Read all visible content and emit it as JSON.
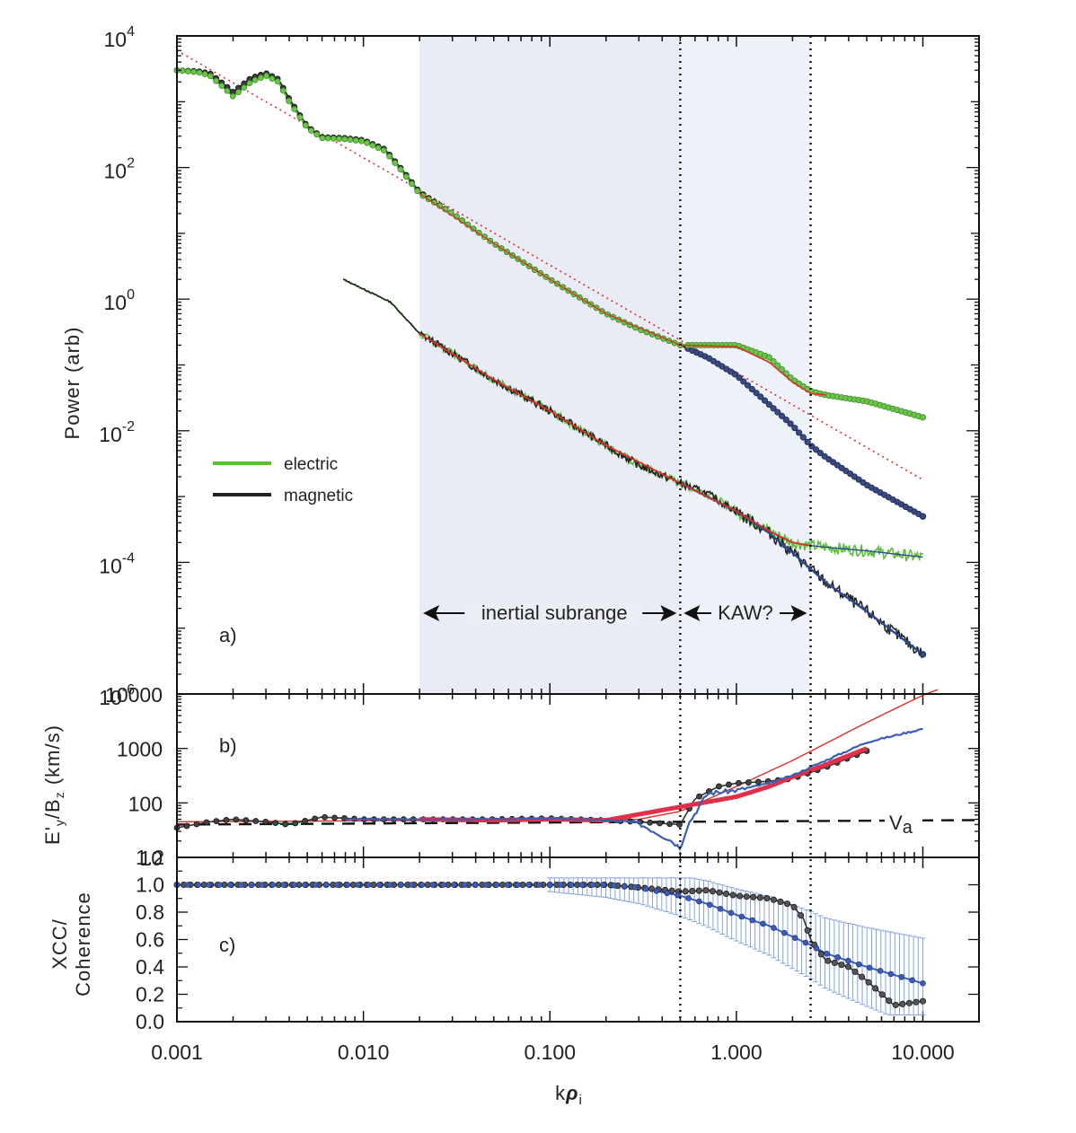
{
  "chart_data": [
    {
      "panel": "a)",
      "type": "line",
      "xscale": "log",
      "yscale": "log",
      "xlim": [
        0.001,
        20
      ],
      "ylim": [
        1e-06,
        10000.0
      ],
      "ylabel": "Power (arb)",
      "y_tick_labels": [
        {
          "base": "10",
          "exp": "4"
        },
        {
          "base": "10",
          "exp": "2"
        },
        {
          "base": "10",
          "exp": "0"
        },
        {
          "base": "10",
          "exp": "-2"
        },
        {
          "base": "10",
          "exp": "-4"
        },
        {
          "base": "10",
          "exp": "-6"
        }
      ],
      "legend": {
        "position": "left",
        "entries": [
          "electric",
          "magnetic"
        ]
      },
      "colors": {
        "electric": "#5cbf3a",
        "magnetic": "#222222",
        "fit": "#d9302a",
        "kaw_model": "#2c4b8c"
      },
      "series": [
        {
          "name": "electric",
          "x": [
            0.001,
            0.0013,
            0.0015,
            0.0018,
            0.002,
            0.0025,
            0.003,
            0.0035,
            0.004,
            0.005,
            0.006,
            0.008,
            0.01,
            0.013,
            0.016,
            0.02,
            0.03,
            0.05,
            0.1,
            0.2,
            0.3,
            0.5,
            0.7,
            1.0,
            1.5,
            2.0,
            2.5,
            3.0,
            5.0,
            10.0
          ],
          "y": [
            3000,
            2800,
            2500,
            1600,
            1200,
            2000,
            2500,
            2000,
            1000,
            400,
            280,
            270,
            250,
            180,
            90,
            40,
            20,
            7,
            2,
            0.6,
            0.35,
            0.2,
            0.2,
            0.2,
            0.13,
            0.06,
            0.04,
            0.035,
            0.028,
            0.016
          ]
        },
        {
          "name": "magnetic",
          "x": [
            0.001,
            0.0013,
            0.0015,
            0.0018,
            0.002,
            0.0025,
            0.003,
            0.0035,
            0.004,
            0.005,
            0.006,
            0.008,
            0.01,
            0.013,
            0.016,
            0.02,
            0.03,
            0.05,
            0.1,
            0.2,
            0.3,
            0.5,
            0.7,
            1.0,
            1.5,
            2.0,
            2.5,
            3.0,
            5.0,
            10.0
          ],
          "y": [
            3000,
            2900,
            2700,
            1800,
            1400,
            2300,
            2700,
            2200,
            1100,
            420,
            290,
            280,
            260,
            190,
            95,
            42,
            20,
            7,
            2,
            0.6,
            0.35,
            0.2,
            0.13,
            0.07,
            0.025,
            0.012,
            0.006,
            0.004,
            0.0015,
            0.0005
          ]
        },
        {
          "name": "electric (lower)",
          "x": [
            0.0078,
            0.014,
            0.02,
            0.03,
            0.05,
            0.1,
            0.2,
            0.3,
            0.5,
            0.7,
            1.0,
            1.5,
            2.0,
            2.5,
            3.0,
            5.0,
            10.0
          ],
          "y": [
            2,
            0.9,
            0.3,
            0.15,
            0.06,
            0.02,
            0.006,
            0.003,
            0.0016,
            0.0011,
            0.0006,
            0.0003,
            0.0002,
            0.00018,
            0.00017,
            0.00015,
            0.00012
          ]
        },
        {
          "name": "magnetic (lower)",
          "x": [
            0.0078,
            0.014,
            0.02,
            0.03,
            0.05,
            0.1,
            0.2,
            0.3,
            0.5,
            0.7,
            1.0,
            1.5,
            2.0,
            2.5,
            3.0,
            5.0,
            10.0
          ],
          "y": [
            2,
            0.9,
            0.3,
            0.15,
            0.06,
            0.02,
            0.006,
            0.003,
            0.0016,
            0.0011,
            0.0006,
            0.00028,
            0.00014,
            8e-05,
            5e-05,
            1.8e-05,
            4e-06
          ]
        }
      ],
      "reference_lines": [
        {
          "style": "dotted-red",
          "x": [
            0.001,
            10.0
          ],
          "y": [
            6000,
            0.0018
          ]
        }
      ],
      "shaded_regions": [
        [
          0.02,
          0.5
        ],
        [
          0.5,
          2.5
        ]
      ],
      "vlines": [
        0.5,
        2.5
      ],
      "annotations": {
        "inertial": "inertial subrange",
        "kaw": "KAW?"
      }
    },
    {
      "panel": "b)",
      "type": "line",
      "xscale": "log",
      "yscale": "log",
      "xlim": [
        0.001,
        20
      ],
      "ylim": [
        10,
        10000
      ],
      "ylabel_parts": [
        "E'",
        "y",
        "/B",
        "z",
        " (km/s)"
      ],
      "y_ticks": [
        "10000",
        "1000",
        "100",
        "10"
      ],
      "series": [
        {
          "name": "black",
          "x": [
            0.001,
            0.0015,
            0.002,
            0.003,
            0.004,
            0.006,
            0.01,
            0.02,
            0.05,
            0.1,
            0.2,
            0.3,
            0.4,
            0.5,
            0.6,
            0.8,
            1.0,
            1.5,
            2.0,
            3.0,
            5.0
          ],
          "y": [
            35,
            45,
            50,
            45,
            40,
            55,
            50,
            50,
            50,
            52,
            48,
            45,
            42,
            40,
            120,
            200,
            230,
            250,
            280,
            450,
            900
          ]
        },
        {
          "name": "blue",
          "x": [
            0.008,
            0.02,
            0.05,
            0.1,
            0.2,
            0.3,
            0.4,
            0.45,
            0.5,
            0.55,
            0.7,
            1.0,
            1.5,
            2.0,
            3.0,
            5.0,
            10.0
          ],
          "y": [
            50,
            50,
            50,
            52,
            48,
            42,
            25,
            20,
            15,
            40,
            150,
            170,
            230,
            320,
            600,
            1300,
            2300
          ]
        },
        {
          "name": "red",
          "x": [
            0.02,
            0.05,
            0.1,
            0.2,
            1.0,
            1.5,
            2.0,
            3.0,
            5.0
          ],
          "y": [
            50,
            48,
            50,
            48,
            130,
            200,
            300,
            500,
            1000
          ]
        }
      ],
      "fit_line": {
        "x": [
          0.001,
          0.3,
          0.5,
          1.0,
          2.0,
          5.0,
          10.0,
          12.0
        ],
        "y": [
          45,
          50,
          70,
          200,
          600,
          3000,
          9500,
          12000
        ]
      },
      "va_line": {
        "y": 40,
        "label": "V",
        "sub": "a"
      },
      "vlines": [
        0.5,
        2.5
      ]
    },
    {
      "panel": "c)",
      "type": "line",
      "xscale": "log",
      "yscale": "linear",
      "xlim": [
        0.001,
        20
      ],
      "ylim": [
        0.0,
        1.2
      ],
      "xlabel_parts": [
        "k",
        "ρ",
        "i"
      ],
      "ylabel_lines": [
        "XCC/",
        "Coherence"
      ],
      "y_ticks": [
        "1.2",
        "1.0",
        "0.8",
        "0.6",
        "0.4",
        "0.2",
        "0.0"
      ],
      "x_ticks": [
        "0.001",
        "0.010",
        "0.100",
        "1.000",
        "10.000"
      ],
      "series": [
        {
          "name": "black",
          "x": [
            0.001,
            0.01,
            0.1,
            0.2,
            0.3,
            0.5,
            0.7,
            1.0,
            1.5,
            2.0,
            2.3,
            2.5,
            3.0,
            4.0,
            5.0,
            7.0,
            10.0
          ],
          "y": [
            1.0,
            1.0,
            1.0,
            1.0,
            0.98,
            0.95,
            0.96,
            0.92,
            0.9,
            0.85,
            0.75,
            0.6,
            0.45,
            0.4,
            0.3,
            0.12,
            0.15
          ]
        },
        {
          "name": "blue",
          "x": [
            0.001,
            0.01,
            0.1,
            0.2,
            0.3,
            0.5,
            0.7,
            1.0,
            1.5,
            2.0,
            2.5,
            3.0,
            5.0,
            10.0
          ],
          "y": [
            1.0,
            1.0,
            1.0,
            1.0,
            0.98,
            0.92,
            0.86,
            0.78,
            0.7,
            0.62,
            0.56,
            0.5,
            0.4,
            0.28
          ]
        }
      ],
      "vlines": [
        0.5,
        2.5
      ]
    }
  ]
}
